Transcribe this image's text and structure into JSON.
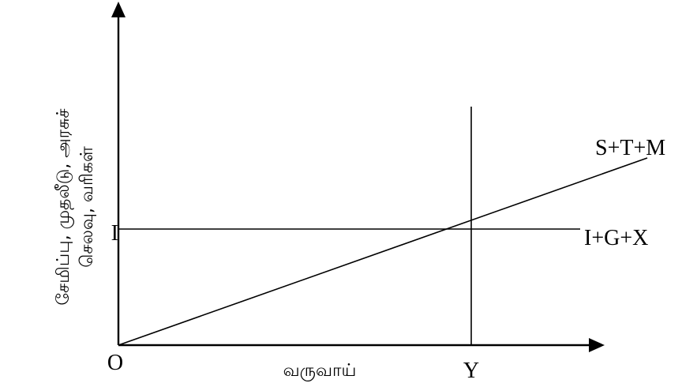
{
  "axes": {
    "y_label_lines": [
      "சேமிப்பு, முதலீடு, அரசுச்",
      "செலவு, வரிகள்"
    ],
    "x_label": "வருவாய்"
  },
  "points": {
    "origin": "O",
    "income": "Y",
    "investment": "I"
  },
  "curves": {
    "leakages": "S+T+M",
    "injections": "I+G+X"
  }
}
